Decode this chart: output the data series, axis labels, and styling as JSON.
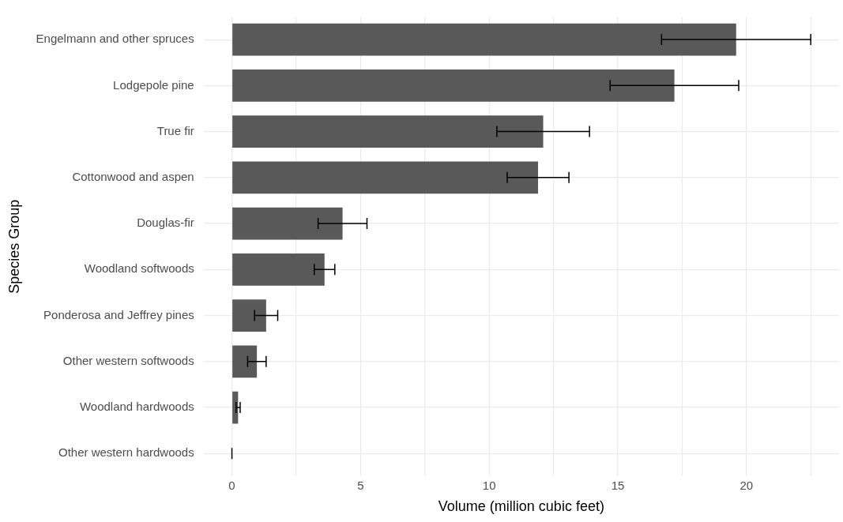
{
  "chart_data": {
    "type": "bar",
    "orientation": "horizontal",
    "xlabel": "Volume (million cubic feet)",
    "ylabel": "Species Group",
    "categories": [
      "Engelmann and other spruces",
      "Lodgepole pine",
      "True fir",
      "Cottonwood and aspen",
      "Douglas-fir",
      "Woodland softwoods",
      "Ponderosa and Jeffrey pines",
      "Other western softwoods",
      "Woodland hardwoods",
      "Other western hardwoods"
    ],
    "values": [
      19.6,
      17.2,
      12.1,
      11.9,
      4.3,
      3.6,
      1.33,
      0.97,
      0.24,
      0
    ],
    "errors": [
      2.9,
      2.5,
      1.8,
      1.2,
      0.95,
      0.4,
      0.45,
      0.36,
      0.08,
      0
    ],
    "color": "#595959",
    "xlim": [
      -1.1,
      23.6
    ],
    "xticks": [
      0,
      {
        "value": 2.5,
        "label": null
      },
      5,
      {
        "value": 7.5,
        "label": null
      },
      10,
      {
        "value": 12.5,
        "label": null
      },
      15,
      {
        "value": 17.5,
        "label": null
      },
      20,
      {
        "value": 22.5,
        "label": null
      }
    ],
    "grid": true,
    "legend": false
  }
}
